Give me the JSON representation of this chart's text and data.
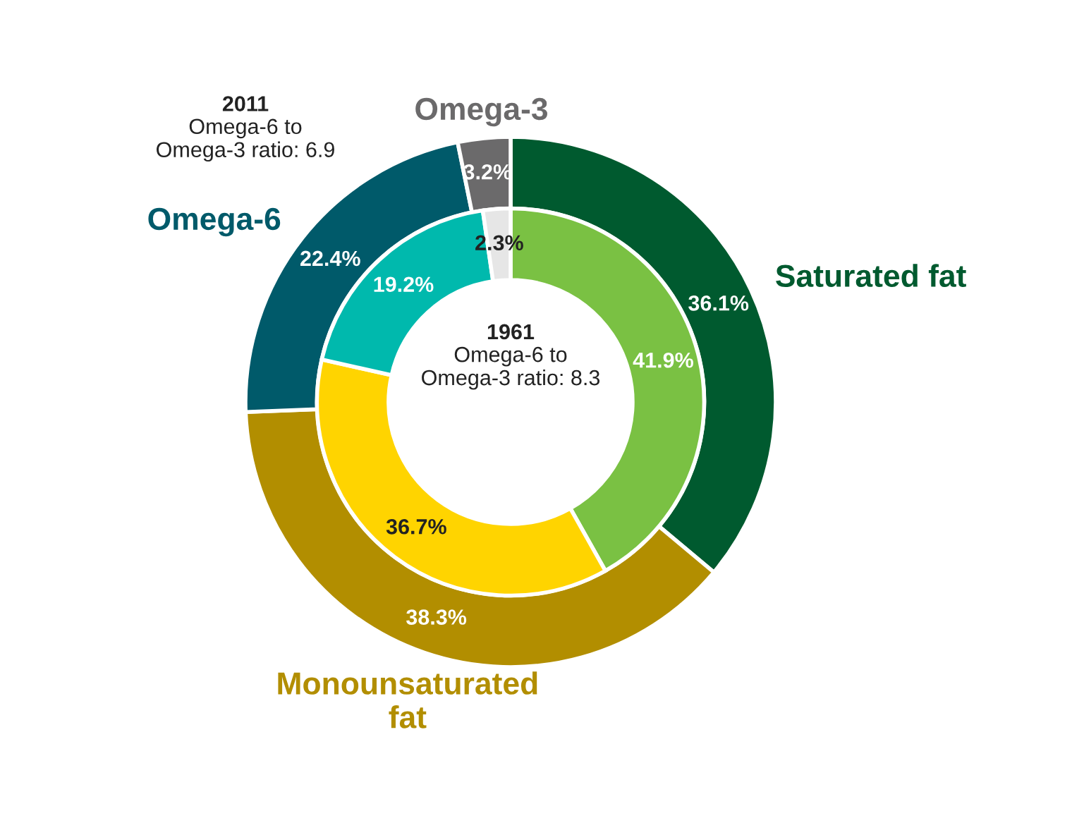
{
  "chart_data": {
    "type": "donut",
    "categories": [
      "Saturated fat",
      "Monounsaturated\nfat",
      "Omega-6",
      "Omega-3"
    ],
    "series": [
      {
        "values": [
          36.1,
          38.3,
          22.4,
          3.2
        ],
        "value_labels": [
          "36.1%",
          "38.3%",
          "22.4%",
          "3.2%"
        ],
        "colors": [
          "#005a2f",
          "#b28e00",
          "#005a6a",
          "#6b6a6b"
        ]
      },
      {
        "values": [
          41.9,
          36.7,
          19.2,
          2.3
        ],
        "value_labels": [
          "41.9%",
          "36.7%",
          "19.2%",
          "2.3%"
        ],
        "colors": [
          "#7ac143",
          "#ffd400",
          "#00b9ad",
          "#e6e6e6"
        ]
      }
    ],
    "annotations": [
      "2011\nOmega-6 to\nOmega-3 ratio: 6.9",
      "1961\nOmega-6 to\nOmega-3 ratio: 8.3"
    ]
  }
}
